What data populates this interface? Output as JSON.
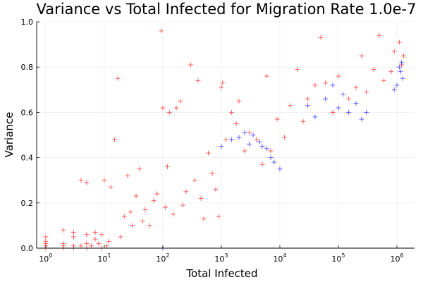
{
  "chart_data": {
    "type": "scatter",
    "title": "Variance vs Total Infected for Migration Rate 1.0e-7",
    "xlabel": "Total Infected",
    "ylabel": "Variance",
    "xscale": "log10",
    "xlim": [
      0.7,
      2000000
    ],
    "ylim": [
      0.0,
      1.0
    ],
    "x_ticks": [
      {
        "value": 1,
        "base": "10",
        "exp": "0"
      },
      {
        "value": 10,
        "base": "10",
        "exp": "1"
      },
      {
        "value": 100,
        "base": "10",
        "exp": "2"
      },
      {
        "value": 1000,
        "base": "10",
        "exp": "3"
      },
      {
        "value": 10000,
        "base": "10",
        "exp": "4"
      },
      {
        "value": 100000,
        "base": "10",
        "exp": "5"
      },
      {
        "value": 1000000,
        "base": "10",
        "exp": "6"
      }
    ],
    "y_ticks": [
      {
        "value": 0.0,
        "label": "0.0"
      },
      {
        "value": 0.2,
        "label": "0.2"
      },
      {
        "value": 0.4,
        "label": "0.4"
      },
      {
        "value": 0.6,
        "label": "0.6"
      },
      {
        "value": 0.8,
        "label": "0.8"
      },
      {
        "value": 1.0,
        "label": "1.0"
      }
    ],
    "grid": true,
    "legend": "none",
    "marker": "cross",
    "series": [
      {
        "color": "#ff3333",
        "values": [
          [
            1,
            0.0
          ],
          [
            1,
            0.01
          ],
          [
            1,
            0.02
          ],
          [
            1,
            0.03
          ],
          [
            1,
            0.05
          ],
          [
            2,
            0.0
          ],
          [
            2,
            0.01
          ],
          [
            2,
            0.02
          ],
          [
            2,
            0.08
          ],
          [
            3,
            0.0
          ],
          [
            3,
            0.01
          ],
          [
            3,
            0.05
          ],
          [
            3,
            0.07
          ],
          [
            4,
            0.01
          ],
          [
            4,
            0.3
          ],
          [
            5,
            0.0
          ],
          [
            5,
            0.02
          ],
          [
            5,
            0.06
          ],
          [
            5,
            0.29
          ],
          [
            6,
            0.01
          ],
          [
            7,
            0.04
          ],
          [
            7,
            0.07
          ],
          [
            8,
            0.02
          ],
          [
            9,
            0.0
          ],
          [
            9,
            0.06
          ],
          [
            10,
            0.3
          ],
          [
            11,
            0.01
          ],
          [
            12,
            0.03
          ],
          [
            13,
            0.27
          ],
          [
            15,
            0.48
          ],
          [
            17,
            0.75
          ],
          [
            19,
            0.05
          ],
          [
            22,
            0.14
          ],
          [
            25,
            0.32
          ],
          [
            28,
            0.16
          ],
          [
            30,
            0.1
          ],
          [
            35,
            0.23
          ],
          [
            40,
            0.35
          ],
          [
            45,
            0.12
          ],
          [
            50,
            0.17
          ],
          [
            60,
            0.1
          ],
          [
            70,
            0.21
          ],
          [
            80,
            0.24
          ],
          [
            95,
            0.96
          ],
          [
            100,
            0.62
          ],
          [
            110,
            0.18
          ],
          [
            120,
            0.36
          ],
          [
            130,
            0.6
          ],
          [
            150,
            0.15
          ],
          [
            170,
            0.62
          ],
          [
            200,
            0.65
          ],
          [
            220,
            0.19
          ],
          [
            250,
            0.25
          ],
          [
            300,
            0.81
          ],
          [
            350,
            0.3
          ],
          [
            400,
            0.74
          ],
          [
            450,
            0.22
          ],
          [
            500,
            0.13
          ],
          [
            600,
            0.42
          ],
          [
            700,
            0.33
          ],
          [
            800,
            0.26
          ],
          [
            900,
            0.14
          ],
          [
            1000,
            0.71
          ],
          [
            1050,
            0.73
          ],
          [
            1200,
            0.48
          ],
          [
            1500,
            0.6
          ],
          [
            1800,
            0.55
          ],
          [
            2000,
            0.65
          ],
          [
            2500,
            0.43
          ],
          [
            3000,
            0.51
          ],
          [
            4000,
            0.48
          ],
          [
            5000,
            0.37
          ],
          [
            6000,
            0.76
          ],
          [
            7000,
            0.43
          ],
          [
            9000,
            0.57
          ],
          [
            12000,
            0.49
          ],
          [
            15000,
            0.63
          ],
          [
            20000,
            0.79
          ],
          [
            25000,
            0.56
          ],
          [
            30000,
            0.66
          ],
          [
            40000,
            0.72
          ],
          [
            50000,
            0.93
          ],
          [
            60000,
            0.73
          ],
          [
            80000,
            0.6
          ],
          [
            100000,
            0.76
          ],
          [
            150000,
            0.66
          ],
          [
            200000,
            0.71
          ],
          [
            250000,
            0.85
          ],
          [
            300000,
            0.69
          ],
          [
            400000,
            0.79
          ],
          [
            500000,
            0.94
          ],
          [
            600000,
            0.74
          ],
          [
            800000,
            0.78
          ],
          [
            900000,
            0.87
          ],
          [
            1100000,
            0.91
          ],
          [
            1200000,
            0.81
          ],
          [
            1300000,
            0.85
          ]
        ]
      },
      {
        "color": "#3333ff",
        "values": [
          [
            100,
            0.0
          ],
          [
            1000,
            0.45
          ],
          [
            1500,
            0.48
          ],
          [
            2000,
            0.49
          ],
          [
            2500,
            0.51
          ],
          [
            3000,
            0.46
          ],
          [
            3500,
            0.5
          ],
          [
            4500,
            0.47
          ],
          [
            5000,
            0.45
          ],
          [
            6000,
            0.44
          ],
          [
            7000,
            0.4
          ],
          [
            8000,
            0.38
          ],
          [
            10000,
            0.35
          ],
          [
            30000,
            0.63
          ],
          [
            40000,
            0.58
          ],
          [
            60000,
            0.66
          ],
          [
            80000,
            0.72
          ],
          [
            100000,
            0.62
          ],
          [
            120000,
            0.68
          ],
          [
            150000,
            0.6
          ],
          [
            200000,
            0.64
          ],
          [
            250000,
            0.57
          ],
          [
            300000,
            0.6
          ],
          [
            900000,
            0.7
          ],
          [
            1000000,
            0.72
          ],
          [
            1100000,
            0.8
          ],
          [
            1150000,
            0.78
          ],
          [
            1200000,
            0.82
          ],
          [
            1250000,
            0.75
          ]
        ]
      }
    ]
  }
}
